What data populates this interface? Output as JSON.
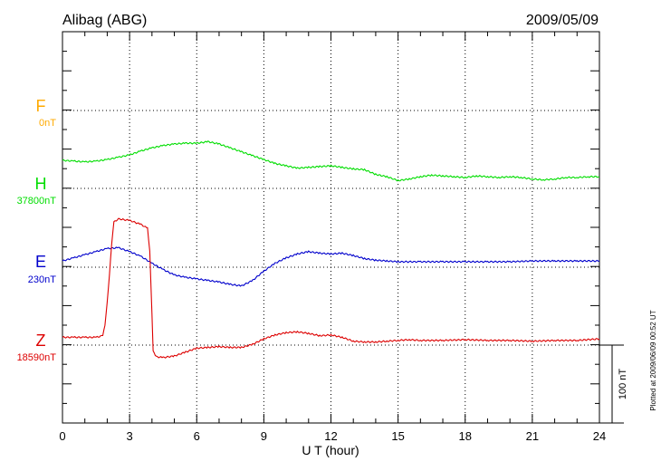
{
  "chart_data": {
    "type": "line",
    "station": "Alibag (ABG)",
    "date": "2009/05/09",
    "xlabel": "U T (hour)",
    "xlim": [
      0,
      24
    ],
    "x_ticks": [
      "0",
      "3",
      "6",
      "9",
      "12",
      "15",
      "18",
      "21",
      "24"
    ],
    "scale_bar_label": "100 nT",
    "scale_bar_nT": 100,
    "footer_note": "Plotted at 2009/06/09 00:52 UT",
    "grid": true,
    "series": [
      {
        "name": "F",
        "baseline_label": "0nT",
        "color": "#ffaa00",
        "points": []
      },
      {
        "name": "H",
        "baseline_label": "37800nT",
        "color": "#00dd00",
        "points": [
          [
            0,
            36
          ],
          [
            0.5,
            35
          ],
          [
            1,
            34
          ],
          [
            1.5,
            35
          ],
          [
            2,
            37
          ],
          [
            2.5,
            40
          ],
          [
            3,
            43
          ],
          [
            3.5,
            48
          ],
          [
            4,
            52
          ],
          [
            4.5,
            55
          ],
          [
            5,
            57
          ],
          [
            5.5,
            58
          ],
          [
            6,
            58
          ],
          [
            6.5,
            60
          ],
          [
            7,
            57
          ],
          [
            7.5,
            52
          ],
          [
            8,
            47
          ],
          [
            8.5,
            42
          ],
          [
            9,
            37
          ],
          [
            9.5,
            32
          ],
          [
            10,
            29
          ],
          [
            10.5,
            26
          ],
          [
            11,
            27
          ],
          [
            11.5,
            28
          ],
          [
            12,
            29
          ],
          [
            12.5,
            27
          ],
          [
            13,
            25
          ],
          [
            13.5,
            24
          ],
          [
            14,
            18
          ],
          [
            14.5,
            15
          ],
          [
            15,
            10
          ],
          [
            15.5,
            12
          ],
          [
            16,
            15
          ],
          [
            16.5,
            17
          ],
          [
            17,
            16
          ],
          [
            17.5,
            15
          ],
          [
            18,
            14
          ],
          [
            18.5,
            16
          ],
          [
            19,
            15
          ],
          [
            19.5,
            14
          ],
          [
            20,
            15
          ],
          [
            20.5,
            14
          ],
          [
            21,
            12
          ],
          [
            21.5,
            11
          ],
          [
            22,
            12
          ],
          [
            22.5,
            14
          ],
          [
            23,
            14
          ],
          [
            23.5,
            15
          ],
          [
            24,
            15
          ]
        ]
      },
      {
        "name": "E",
        "baseline_label": "230nT",
        "color": "#0000cc",
        "points": [
          [
            0,
            8
          ],
          [
            0.5,
            12
          ],
          [
            1,
            16
          ],
          [
            1.5,
            20
          ],
          [
            2,
            24
          ],
          [
            2.5,
            25
          ],
          [
            3,
            20
          ],
          [
            3.5,
            14
          ],
          [
            4,
            5
          ],
          [
            4.5,
            -3
          ],
          [
            5,
            -10
          ],
          [
            5.5,
            -13
          ],
          [
            6,
            -15
          ],
          [
            6.5,
            -17
          ],
          [
            7,
            -19
          ],
          [
            7.5,
            -22
          ],
          [
            8,
            -24
          ],
          [
            8.5,
            -17
          ],
          [
            9,
            -5
          ],
          [
            9.5,
            5
          ],
          [
            10,
            12
          ],
          [
            10.5,
            17
          ],
          [
            11,
            20
          ],
          [
            11.5,
            18
          ],
          [
            12,
            17
          ],
          [
            12.5,
            18
          ],
          [
            13,
            15
          ],
          [
            13.5,
            11
          ],
          [
            14,
            9
          ],
          [
            14.5,
            8
          ],
          [
            15,
            7
          ],
          [
            16,
            7
          ],
          [
            17,
            7
          ],
          [
            18,
            7
          ],
          [
            19,
            7
          ],
          [
            20,
            7
          ],
          [
            21,
            8
          ],
          [
            22,
            8
          ],
          [
            23,
            8
          ],
          [
            24,
            8
          ]
        ]
      },
      {
        "name": "Z",
        "baseline_label": "18590nT",
        "color": "#dd0000",
        "points": [
          [
            0,
            10
          ],
          [
            0.5,
            10
          ],
          [
            1,
            10
          ],
          [
            1.5,
            10
          ],
          [
            1.8,
            12
          ],
          [
            1.9,
            25
          ],
          [
            2.0,
            55
          ],
          [
            2.1,
            90
          ],
          [
            2.2,
            130
          ],
          [
            2.3,
            158
          ],
          [
            2.5,
            162
          ],
          [
            3,
            160
          ],
          [
            3.5,
            155
          ],
          [
            3.8,
            150
          ],
          [
            3.9,
            120
          ],
          [
            4,
            40
          ],
          [
            4.05,
            -8
          ],
          [
            4.2,
            -15
          ],
          [
            4.5,
            -16
          ],
          [
            5,
            -14
          ],
          [
            5.5,
            -9
          ],
          [
            6,
            -4
          ],
          [
            6.5,
            -3
          ],
          [
            7,
            -2
          ],
          [
            7.5,
            -3
          ],
          [
            8,
            -3
          ],
          [
            8.5,
            1
          ],
          [
            9,
            8
          ],
          [
            9.5,
            13
          ],
          [
            10,
            16
          ],
          [
            10.5,
            17
          ],
          [
            11,
            15
          ],
          [
            11.5,
            12
          ],
          [
            12,
            13
          ],
          [
            12.5,
            10
          ],
          [
            13,
            5
          ],
          [
            13.5,
            4
          ],
          [
            14,
            4
          ],
          [
            14.5,
            5
          ],
          [
            15,
            6
          ],
          [
            15.5,
            7
          ],
          [
            16,
            6
          ],
          [
            17,
            6
          ],
          [
            18,
            7
          ],
          [
            19,
            6
          ],
          [
            20,
            6
          ],
          [
            21,
            5
          ],
          [
            22,
            6
          ],
          [
            23,
            6
          ],
          [
            24,
            8
          ]
        ]
      }
    ]
  }
}
